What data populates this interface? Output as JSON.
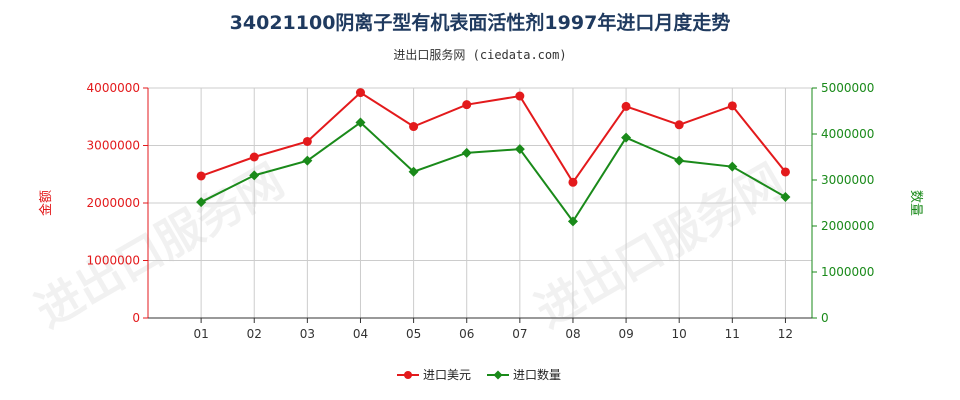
{
  "title": "34021100阴离子型有机表面活性剂1997年进口月度走势",
  "subtitle": "进出口服务网 (ciedata.com)",
  "watermark": "进出口服务网",
  "colors": {
    "amount": "#e31a1c",
    "quantity": "#1a8a1a",
    "grid": "#cccccc",
    "axis": "#333333"
  },
  "chart_data": {
    "type": "line",
    "categories": [
      "01",
      "02",
      "03",
      "04",
      "05",
      "06",
      "07",
      "08",
      "09",
      "10",
      "11",
      "12"
    ],
    "y_left": {
      "label": "金额",
      "ylim": [
        0,
        4000000
      ],
      "ticks": [
        0,
        1000000,
        2000000,
        3000000,
        4000000
      ],
      "tick_labels": [
        "0",
        "1000000",
        "2000000",
        "3000000",
        "4000000"
      ]
    },
    "y_right": {
      "label": "数量",
      "ylim": [
        0,
        5000000
      ],
      "ticks": [
        0,
        1000000,
        2000000,
        3000000,
        4000000,
        5000000
      ],
      "tick_labels": [
        "0",
        "1000000",
        "2000000",
        "3000000",
        "4000000",
        "5000000"
      ]
    },
    "series": [
      {
        "name": "进口美元",
        "axis": "left",
        "marker": "circle",
        "values": [
          2470000,
          2800000,
          3070000,
          3920000,
          3330000,
          3710000,
          3860000,
          2360000,
          3680000,
          3360000,
          3690000,
          2540000
        ]
      },
      {
        "name": "进口数量",
        "axis": "right",
        "marker": "diamond",
        "values": [
          2520000,
          3100000,
          3420000,
          4250000,
          3180000,
          3590000,
          3670000,
          2100000,
          3920000,
          3420000,
          3290000,
          2630000
        ]
      }
    ],
    "grid": true,
    "legend_position": "bottom-center"
  }
}
